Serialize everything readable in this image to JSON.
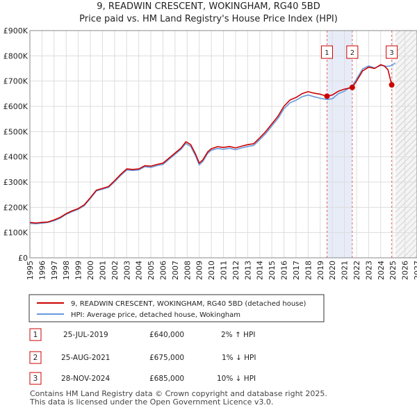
{
  "chart_data": {
    "type": "line",
    "title": "9, READWIN CRESCENT, WOKINGHAM, RG40 5BD",
    "subtitle": "Price paid vs. HM Land Registry's House Price Index (HPI)",
    "xlabel": "",
    "ylabel": "",
    "xlim": [
      1995,
      2027
    ],
    "ylim": [
      0,
      900000
    ],
    "x_ticks": [
      "1995",
      "1996",
      "1997",
      "1998",
      "1999",
      "2000",
      "2001",
      "2002",
      "2003",
      "2004",
      "2005",
      "2006",
      "2007",
      "2008",
      "2009",
      "2010",
      "2011",
      "2012",
      "2013",
      "2014",
      "2015",
      "2016",
      "2017",
      "2018",
      "2019",
      "2020",
      "2021",
      "2022",
      "2023",
      "2024",
      "2025",
      "2026",
      "2027"
    ],
    "y_ticks": [
      {
        "value": 0,
        "label": "£0"
      },
      {
        "value": 100000,
        "label": "£100K"
      },
      {
        "value": 200000,
        "label": "£200K"
      },
      {
        "value": 300000,
        "label": "£300K"
      },
      {
        "value": 400000,
        "label": "£400K"
      },
      {
        "value": 500000,
        "label": "£500K"
      },
      {
        "value": 600000,
        "label": "£600K"
      },
      {
        "value": 700000,
        "label": "£700K"
      },
      {
        "value": 800000,
        "label": "£800K"
      },
      {
        "value": 900000,
        "label": "£900K"
      }
    ],
    "grid": true,
    "shaded_span": {
      "start": 2019.56,
      "end": 2021.65
    },
    "forecast_start": 2025.2,
    "series": [
      {
        "name": "9, READWIN CRESCENT, WOKINGHAM, RG40 5BD (detached house)",
        "color": "#cc0000",
        "points": [
          [
            1995.0,
            140000
          ],
          [
            1995.5,
            138000
          ],
          [
            1996.0,
            140000
          ],
          [
            1996.5,
            142000
          ],
          [
            1997.0,
            150000
          ],
          [
            1997.5,
            160000
          ],
          [
            1998.0,
            175000
          ],
          [
            1998.5,
            186000
          ],
          [
            1999.0,
            195000
          ],
          [
            1999.5,
            210000
          ],
          [
            2000.0,
            238000
          ],
          [
            2000.5,
            268000
          ],
          [
            2001.0,
            275000
          ],
          [
            2001.5,
            282000
          ],
          [
            2002.0,
            305000
          ],
          [
            2002.5,
            330000
          ],
          [
            2003.0,
            352000
          ],
          [
            2003.5,
            350000
          ],
          [
            2004.0,
            352000
          ],
          [
            2004.5,
            365000
          ],
          [
            2005.0,
            363000
          ],
          [
            2005.5,
            370000
          ],
          [
            2006.0,
            375000
          ],
          [
            2006.5,
            395000
          ],
          [
            2007.0,
            415000
          ],
          [
            2007.5,
            435000
          ],
          [
            2007.9,
            460000
          ],
          [
            2008.3,
            448000
          ],
          [
            2008.7,
            410000
          ],
          [
            2009.0,
            375000
          ],
          [
            2009.3,
            388000
          ],
          [
            2009.7,
            420000
          ],
          [
            2010.0,
            432000
          ],
          [
            2010.5,
            440000
          ],
          [
            2011.0,
            437000
          ],
          [
            2011.5,
            441000
          ],
          [
            2012.0,
            435000
          ],
          [
            2012.5,
            442000
          ],
          [
            2013.0,
            448000
          ],
          [
            2013.5,
            452000
          ],
          [
            2014.0,
            475000
          ],
          [
            2014.5,
            500000
          ],
          [
            2015.0,
            530000
          ],
          [
            2015.5,
            560000
          ],
          [
            2016.0,
            600000
          ],
          [
            2016.5,
            625000
          ],
          [
            2017.0,
            635000
          ],
          [
            2017.5,
            650000
          ],
          [
            2018.0,
            658000
          ],
          [
            2018.5,
            652000
          ],
          [
            2019.0,
            648000
          ],
          [
            2019.56,
            640000
          ],
          [
            2020.0,
            645000
          ],
          [
            2020.5,
            660000
          ],
          [
            2021.0,
            668000
          ],
          [
            2021.65,
            675000
          ],
          [
            2022.0,
            700000
          ],
          [
            2022.5,
            740000
          ],
          [
            2023.0,
            755000
          ],
          [
            2023.5,
            750000
          ],
          [
            2024.0,
            765000
          ],
          [
            2024.3,
            760000
          ],
          [
            2024.6,
            745000
          ],
          [
            2024.91,
            685000
          ],
          [
            2025.0,
            690000
          ]
        ]
      },
      {
        "name": "HPI: Average price, detached house, Wokingham",
        "color": "#6699dd",
        "points": [
          [
            1995.0,
            136000
          ],
          [
            1995.5,
            135000
          ],
          [
            1996.0,
            137000
          ],
          [
            1996.5,
            140000
          ],
          [
            1997.0,
            147000
          ],
          [
            1997.5,
            157000
          ],
          [
            1998.0,
            172000
          ],
          [
            1998.5,
            183000
          ],
          [
            1999.0,
            192000
          ],
          [
            1999.5,
            207000
          ],
          [
            2000.0,
            235000
          ],
          [
            2000.5,
            265000
          ],
          [
            2001.0,
            272000
          ],
          [
            2001.5,
            279000
          ],
          [
            2002.0,
            301000
          ],
          [
            2002.5,
            326000
          ],
          [
            2003.0,
            348000
          ],
          [
            2003.5,
            346000
          ],
          [
            2004.0,
            348000
          ],
          [
            2004.5,
            361000
          ],
          [
            2005.0,
            358000
          ],
          [
            2005.5,
            365000
          ],
          [
            2006.0,
            370000
          ],
          [
            2006.5,
            390000
          ],
          [
            2007.0,
            410000
          ],
          [
            2007.5,
            430000
          ],
          [
            2007.9,
            453000
          ],
          [
            2008.3,
            441000
          ],
          [
            2008.7,
            403000
          ],
          [
            2009.0,
            368000
          ],
          [
            2009.3,
            382000
          ],
          [
            2009.7,
            414000
          ],
          [
            2010.0,
            426000
          ],
          [
            2010.5,
            433000
          ],
          [
            2011.0,
            430000
          ],
          [
            2011.5,
            434000
          ],
          [
            2012.0,
            428000
          ],
          [
            2012.5,
            435000
          ],
          [
            2013.0,
            441000
          ],
          [
            2013.5,
            445000
          ],
          [
            2014.0,
            468000
          ],
          [
            2014.5,
            492000
          ],
          [
            2015.0,
            522000
          ],
          [
            2015.5,
            551000
          ],
          [
            2016.0,
            590000
          ],
          [
            2016.5,
            614000
          ],
          [
            2017.0,
            624000
          ],
          [
            2017.5,
            638000
          ],
          [
            2018.0,
            645000
          ],
          [
            2018.5,
            638000
          ],
          [
            2019.0,
            632000
          ],
          [
            2019.56,
            627000
          ],
          [
            2020.0,
            630000
          ],
          [
            2020.5,
            650000
          ],
          [
            2021.0,
            660000
          ],
          [
            2021.65,
            682000
          ],
          [
            2022.0,
            708000
          ],
          [
            2022.5,
            748000
          ],
          [
            2023.0,
            760000
          ],
          [
            2023.5,
            752000
          ],
          [
            2024.0,
            762000
          ],
          [
            2024.5,
            758000
          ],
          [
            2024.91,
            761000
          ],
          [
            2025.2,
            772000
          ]
        ]
      }
    ],
    "annotations": [
      {
        "label": "1",
        "x": 2019.56,
        "y": 640000
      },
      {
        "label": "2",
        "x": 2021.65,
        "y": 675000
      },
      {
        "label": "3",
        "x": 2024.91,
        "y": 685000
      }
    ],
    "legend": {
      "position": "bottom",
      "entries": [
        "9, READWIN CRESCENT, WOKINGHAM, RG40 5BD (detached house)",
        "HPI: Average price, detached house, Wokingham"
      ]
    }
  },
  "transactions": [
    {
      "num": "1",
      "date": "25-JUL-2019",
      "price": "£640,000",
      "hpi": "2% ↑ HPI"
    },
    {
      "num": "2",
      "date": "25-AUG-2021",
      "price": "£675,000",
      "hpi": "1% ↓ HPI"
    },
    {
      "num": "3",
      "date": "28-NOV-2024",
      "price": "£685,000",
      "hpi": "10% ↓ HPI"
    }
  ],
  "footer": {
    "line1": "Contains HM Land Registry data © Crown copyright and database right 2025.",
    "line2": "This data is licensed under the Open Government Licence v3.0."
  }
}
